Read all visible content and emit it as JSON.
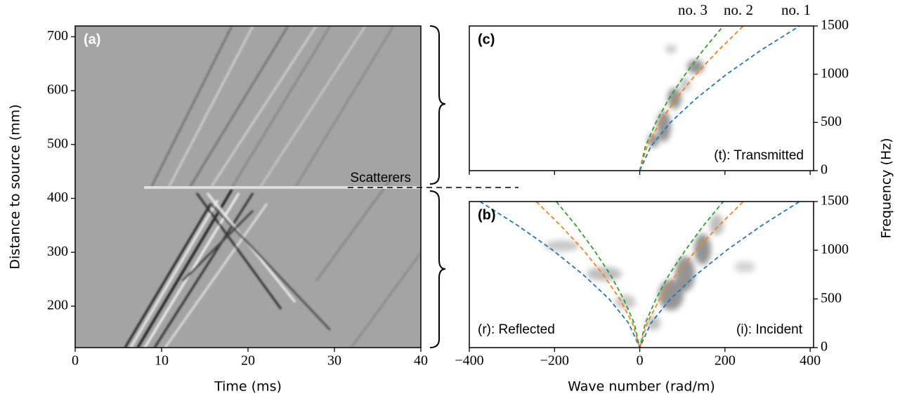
{
  "chart_data": [
    {
      "type": "image",
      "panel_label": "(a)",
      "annotation": "Scatterers",
      "x_label": "Time (ms)",
      "y_label": "Distance to source (mm)",
      "xlim": [
        0,
        40
      ],
      "xticks": [
        0,
        10,
        20,
        30,
        40
      ],
      "ylim": [
        123,
        720
      ],
      "yticks": [
        200,
        300,
        400,
        500,
        600,
        700
      ],
      "y_axis_side": "left",
      "show_xtick_labels": true
    },
    {
      "type": "line",
      "panel_label": "(c)",
      "annotation": "(t): Transmitted",
      "xlim": [
        -400,
        408
      ],
      "xticks": [
        -400,
        -200,
        0,
        200,
        400
      ],
      "ylim": [
        0,
        1500
      ],
      "yticks": [
        0,
        500,
        1000,
        1500
      ],
      "y_axis_side": "right",
      "show_xtick_labels": false,
      "series": [
        {
          "name": "no. 3",
          "color": "#2ca02c",
          "x": [
            0,
            13,
            38,
            69,
            107,
            149,
            196
          ],
          "values": [
            0,
            250,
            500,
            750,
            1000,
            1250,
            1500
          ]
        },
        {
          "name": "no. 2",
          "color": "#ff7f0e",
          "x": [
            0,
            17,
            47,
            86,
            132,
            185,
            243
          ],
          "values": [
            0,
            250,
            500,
            750,
            1000,
            1250,
            1500
          ]
        },
        {
          "name": "no. 1",
          "color": "#1f77b4",
          "x": [
            0,
            26,
            72,
            133,
            204,
            285,
            375
          ],
          "values": [
            0,
            250,
            500,
            750,
            1000,
            1250,
            1500
          ]
        }
      ]
    },
    {
      "type": "line",
      "panel_label": "(b)",
      "annotation": "(r): Reflected",
      "annotation_2": "(i): Incident",
      "x_label": "Wave number (rad/m)",
      "y_label": "Frequency (Hz)",
      "xlim": [
        -400,
        408
      ],
      "xticks": [
        {
          "value": -400,
          "label": "−400"
        },
        {
          "value": -200,
          "label": "−200"
        },
        0,
        200,
        400
      ],
      "ylim": [
        0,
        1500
      ],
      "yticks": [
        0,
        500,
        1000,
        1500
      ],
      "y_axis_side": "right",
      "show_xtick_labels": true,
      "series": [
        {
          "color": "#2ca02c",
          "x": [
            -196,
            -149,
            -107,
            -69,
            -38,
            -13,
            0,
            13,
            38,
            69,
            107,
            149,
            196
          ],
          "values": [
            1500,
            1250,
            1000,
            750,
            500,
            250,
            0,
            250,
            500,
            750,
            1000,
            1250,
            1500
          ]
        },
        {
          "color": "#ff7f0e",
          "x": [
            -243,
            -185,
            -132,
            -86,
            -47,
            -17,
            0,
            17,
            47,
            86,
            132,
            185,
            243
          ],
          "values": [
            1500,
            1250,
            1000,
            750,
            500,
            250,
            0,
            250,
            500,
            750,
            1000,
            1250,
            1500
          ]
        },
        {
          "color": "#1f77b4",
          "x": [
            -375,
            -285,
            -204,
            -133,
            -72,
            -26,
            0,
            26,
            72,
            133,
            204,
            285,
            375
          ],
          "values": [
            1500,
            1250,
            1000,
            750,
            500,
            250,
            0,
            250,
            500,
            750,
            1000,
            1250,
            1500
          ]
        }
      ]
    }
  ]
}
